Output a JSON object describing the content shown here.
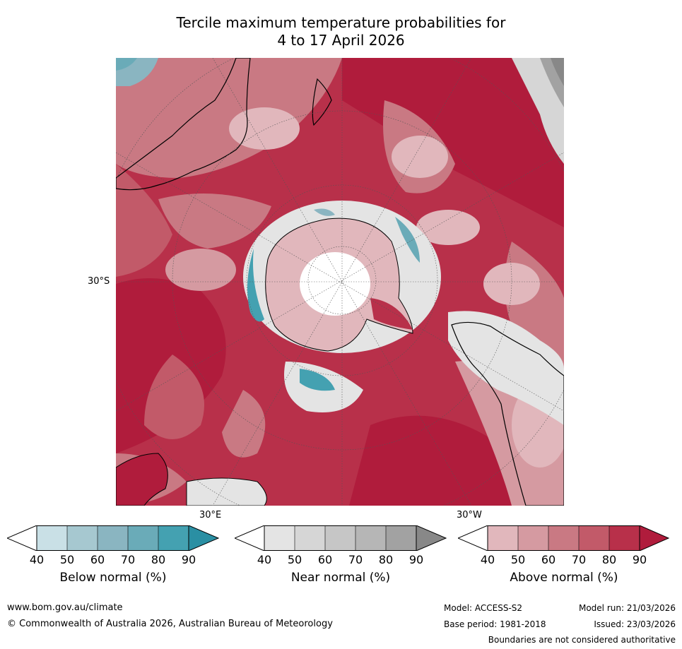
{
  "title_line1": "Tercile maximum temperature probabilities for",
  "title_line2": "4 to 17 April 2026",
  "map": {
    "lat_label": "30°S",
    "lon_label_east": "30°E",
    "lon_label_west": "30°W",
    "colors": {
      "below": [
        "#c9e0e6",
        "#a6c8d0",
        "#8ab5c1",
        "#6aabb8",
        "#44a1b1",
        "#2a8fa3"
      ],
      "near": [
        "#e4e4e4",
        "#d6d6d6",
        "#c6c6c6",
        "#b6b6b6",
        "#a2a2a2",
        "#888888"
      ],
      "above": [
        "#e1b7bc",
        "#d59aa1",
        "#c97983",
        "#c25a69",
        "#b8304a",
        "#b01c3c"
      ]
    }
  },
  "colorbars": [
    {
      "label": "Below normal (%)",
      "ticks": [
        "40",
        "50",
        "60",
        "70",
        "80",
        "90"
      ]
    },
    {
      "label": "Near normal (%)",
      "ticks": [
        "40",
        "50",
        "60",
        "70",
        "80",
        "90"
      ]
    },
    {
      "label": "Above normal (%)",
      "ticks": [
        "40",
        "50",
        "60",
        "70",
        "80",
        "90"
      ]
    }
  ],
  "footer": {
    "website": "www.bom.gov.au/climate",
    "copyright": "© Commonwealth of Australia 2026, Australian Bureau of Meteorology",
    "model": "Model: ACCESS-S2",
    "model_run": "Model run: 21/03/2026",
    "base_period": "Base period: 1981-2018",
    "issued": "Issued: 23/03/2026",
    "disclaimer": "Boundaries are not considered authoritative"
  }
}
